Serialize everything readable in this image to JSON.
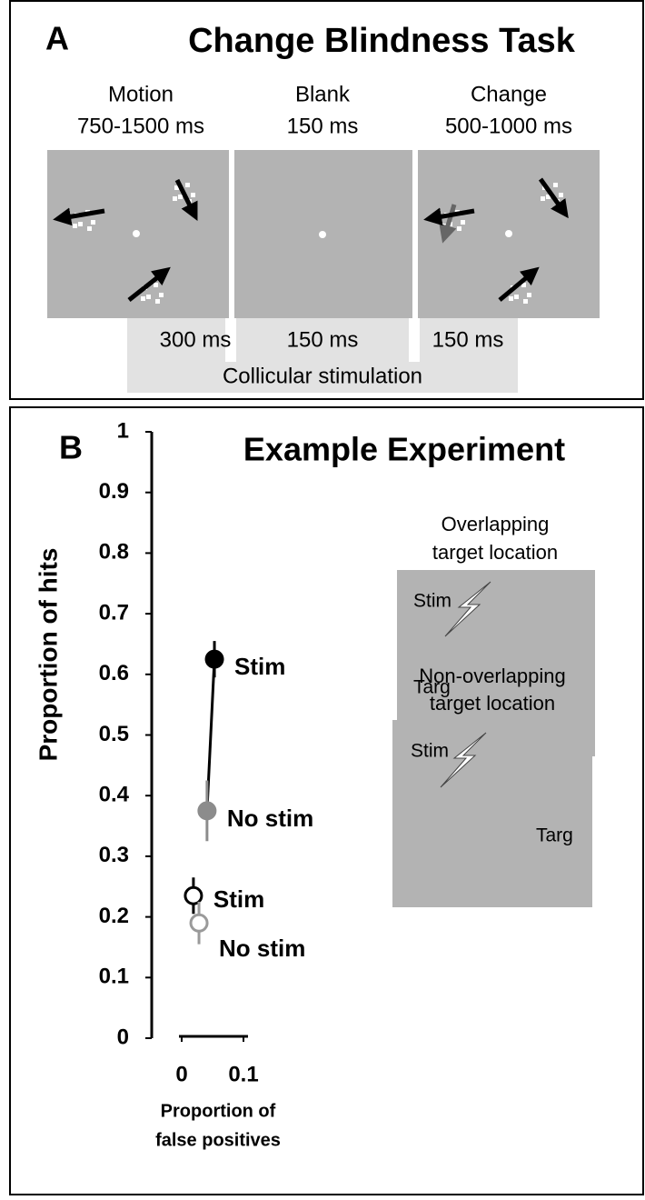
{
  "panel_a": {
    "label": "A",
    "title": "Change Blindness Task",
    "epochs": [
      {
        "name": "Motion",
        "duration": "750-1500 ms"
      },
      {
        "name": "Blank",
        "duration": "150 ms"
      },
      {
        "name": "Change",
        "duration": "500-1000 ms"
      }
    ],
    "stim_timings": [
      "300 ms",
      "150 ms",
      "150 ms"
    ],
    "stim_label": "Collicular stimulation"
  },
  "panel_b": {
    "label": "B",
    "insets": [
      {
        "caption": [
          "Overlapping",
          "target location"
        ],
        "stim_label": "Stim",
        "target_label": "Targ"
      },
      {
        "caption": [
          "Non-overlapping",
          "target location"
        ],
        "stim_label": "Stim",
        "target_label": "Targ"
      }
    ]
  },
  "chart_data": {
    "type": "scatter",
    "title": "Example Experiment",
    "xlabel": [
      "Proportion of",
      "false positives"
    ],
    "ylabel": "Proportion of hits",
    "xlim": [
      0,
      0.1
    ],
    "xticks": [
      0,
      0.1
    ],
    "ylim": [
      0,
      1
    ],
    "yticks": [
      0,
      0.1,
      0.2,
      0.3,
      0.4,
      0.5,
      0.6,
      0.7,
      0.8,
      0.9,
      1
    ],
    "series": [
      {
        "name": "Stim",
        "color": "#000000",
        "marker": "filled",
        "x": [
          0.053
        ],
        "values": [
          0.625
        ],
        "errors": [
          0.03
        ]
      },
      {
        "name": "No stim",
        "color": "#8c8c8c",
        "marker": "filled",
        "x": [
          0.041
        ],
        "values": [
          0.375
        ],
        "errors": [
          0.05
        ]
      },
      {
        "name": "Stim",
        "color": "#000000",
        "marker": "open",
        "x": [
          0.019
        ],
        "values": [
          0.235
        ],
        "errors": [
          0.03
        ]
      },
      {
        "name": "No stim",
        "color": "#9a9a9a",
        "marker": "open",
        "x": [
          0.028
        ],
        "values": [
          0.19
        ],
        "errors": [
          0.035
        ]
      }
    ]
  }
}
